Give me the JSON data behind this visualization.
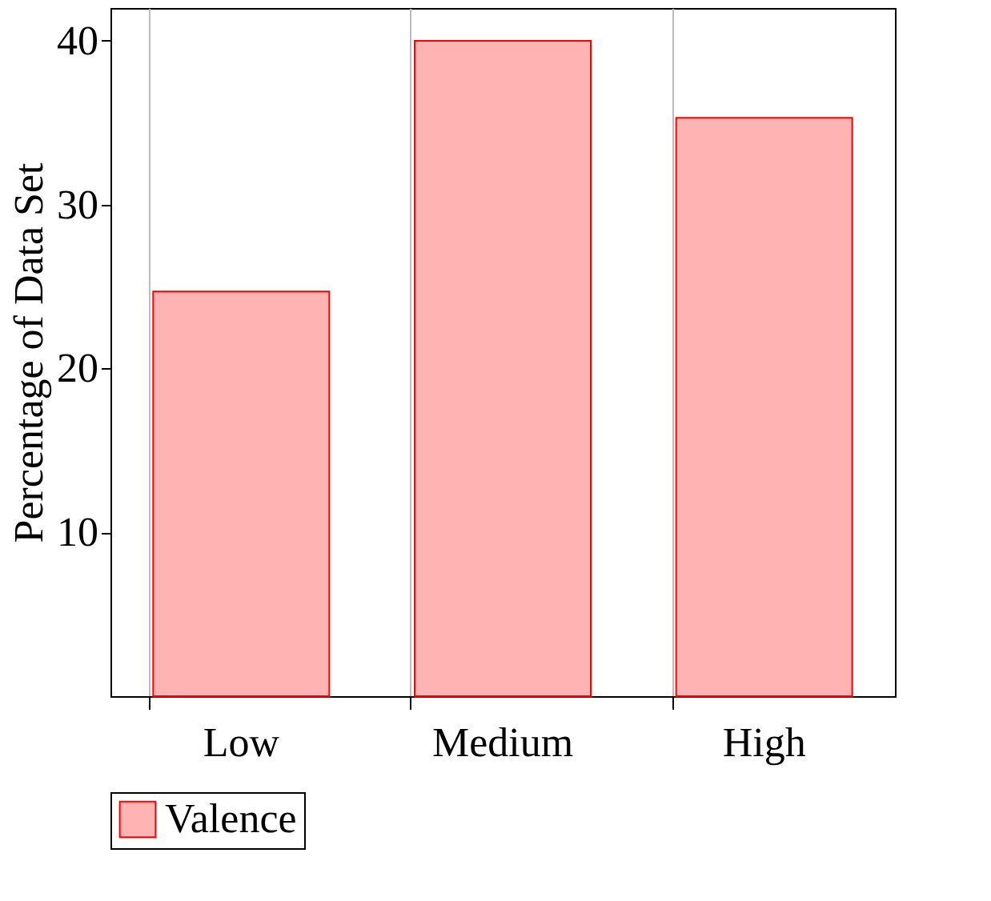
{
  "chart_data": {
    "type": "bar",
    "categories": [
      "Low",
      "Medium",
      "High"
    ],
    "series": [
      {
        "name": "Valence",
        "color": "#ffb3b3",
        "values": [
          24.7,
          40.0,
          35.3
        ]
      }
    ],
    "ylabel": "Percentage of Data Set",
    "ylim": [
      0,
      42
    ],
    "yticks": [
      10,
      20,
      30,
      40
    ],
    "grid": "x",
    "legend": "bottom"
  }
}
